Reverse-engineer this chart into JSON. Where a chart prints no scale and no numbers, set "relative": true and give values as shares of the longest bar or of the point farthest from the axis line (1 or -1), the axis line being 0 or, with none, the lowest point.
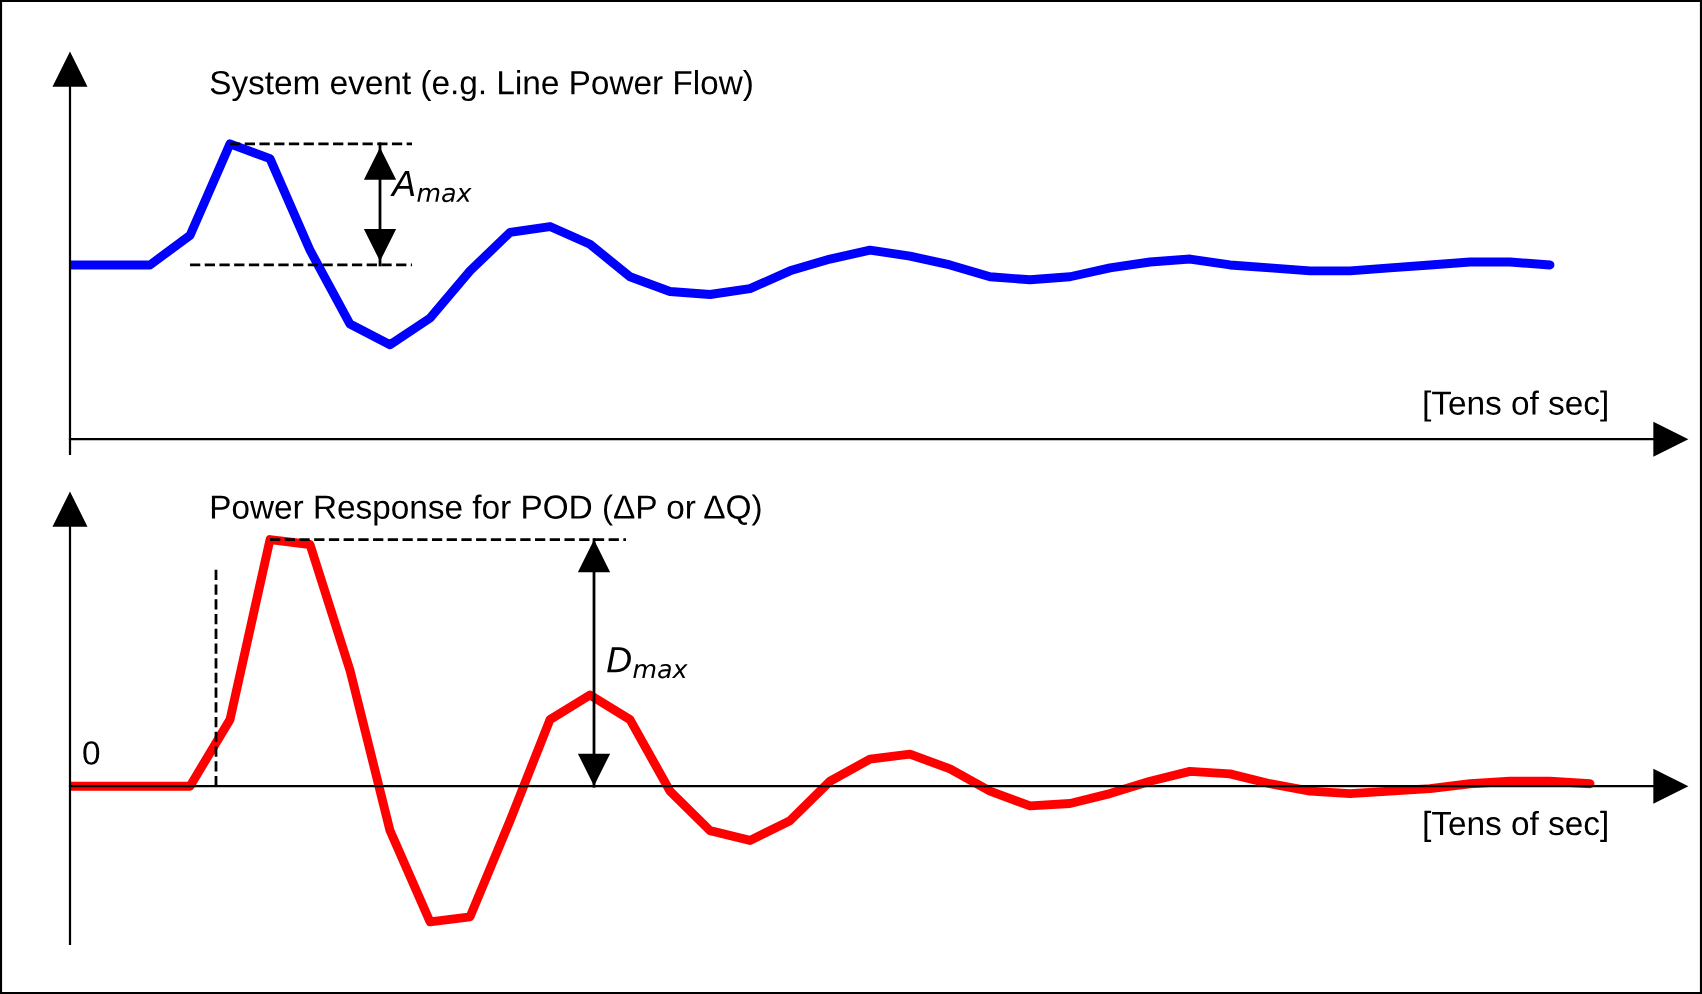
{
  "chart_data": [
    {
      "type": "line",
      "relative": true,
      "title": "System event (e.g. Line Power Flow)",
      "xlabel": "[Tens of sec]",
      "line_style": "solid",
      "marker": "none",
      "categories": [
        null,
        null,
        null,
        null,
        null,
        null,
        null,
        null,
        null,
        null,
        null,
        null,
        null,
        null,
        null,
        null,
        null,
        null,
        null,
        null,
        null,
        null,
        null,
        null,
        null,
        null,
        null,
        null,
        null,
        null,
        null,
        null,
        null,
        null,
        null,
        null,
        null,
        null
      ],
      "series": [
        {
          "color": "#0000ff",
          "values": [
            0.59,
            0.59,
            0.59,
            0.69,
            1,
            0.95,
            0.64,
            0.39,
            0.32,
            0.41,
            0.57,
            0.7,
            0.72,
            0.66,
            0.55,
            0.5,
            0.49,
            0.51,
            0.57,
            0.61,
            0.64,
            0.62,
            0.59,
            0.55,
            0.54,
            0.55,
            0.58,
            0.6,
            0.61,
            0.59,
            0.58,
            0.57,
            0.57,
            0.58,
            0.59,
            0.6,
            0.6,
            0.59
          ]
        }
      ],
      "annotations": [
        "A$_{max}$"
      ]
    },
    {
      "type": "line",
      "relative": true,
      "title": "Power Response for POD (ΔP or ΔQ)",
      "xlabel": "[Tens of sec]",
      "line_style": "solid",
      "marker": "none",
      "categories": [
        null,
        null,
        null,
        null,
        null,
        null,
        null,
        null,
        null,
        null,
        null,
        null,
        null,
        null,
        null,
        null,
        null,
        null,
        null,
        null,
        null,
        null,
        null,
        null,
        null,
        null,
        null,
        null,
        null,
        null,
        null,
        null,
        null,
        null,
        null,
        null,
        null,
        null,
        null
      ],
      "series": [
        {
          "color": "#ff0000",
          "values": [
            0,
            0,
            0,
            0,
            0.27,
            1,
            0.98,
            0.47,
            -0.18,
            -0.55,
            -0.53,
            -0.14,
            0.27,
            0.37,
            0.27,
            -0.02,
            -0.18,
            -0.22,
            -0.14,
            0.02,
            0.11,
            0.13,
            0.07,
            -0.02,
            -0.08,
            -0.07,
            -0.03,
            0.02,
            0.06,
            0.05,
            0.01,
            -0.02,
            -0.03,
            -0.02,
            -0.01,
            0.01,
            0.02,
            0.02,
            0.01
          ]
        }
      ],
      "annotations": [
        "D$_{max}$",
        "0"
      ]
    }
  ]
}
